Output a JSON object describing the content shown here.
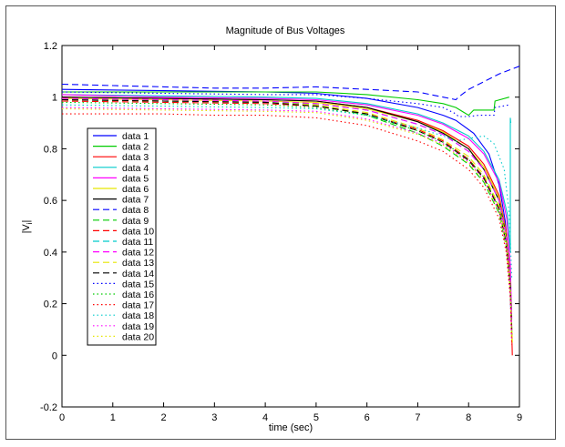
{
  "chart_data": {
    "type": "line",
    "title": "Magnitude of Bus Voltages",
    "xlabel": "time (sec)",
    "ylabel": "|V",
    "ylabel_subscript": "i",
    "ylabel_close": "|",
    "xlim": [
      0,
      9
    ],
    "ylim": [
      -0.2,
      1.2
    ],
    "xticks": [
      0,
      1,
      2,
      3,
      4,
      5,
      6,
      7,
      8,
      9
    ],
    "yticks": [
      -0.2,
      0,
      0.2,
      0.4,
      0.6,
      0.8,
      1,
      1.2
    ],
    "grid": false,
    "legend_position": "left",
    "series": [
      {
        "name": "data 1",
        "color": "#0000ff",
        "dash": "solid",
        "points": [
          [
            0,
            1.03
          ],
          [
            2,
            1.025
          ],
          [
            4,
            1.02
          ],
          [
            5,
            1.015
          ],
          [
            6,
            0.995
          ],
          [
            7,
            0.96
          ],
          [
            7.5,
            0.93
          ],
          [
            7.75,
            0.91
          ],
          [
            8.1,
            0.86
          ],
          [
            8.4,
            0.78
          ],
          [
            8.6,
            0.66
          ],
          [
            8.72,
            0.52
          ],
          [
            8.8,
            0.35
          ],
          [
            8.84,
            0.12
          ]
        ]
      },
      {
        "name": "data 2",
        "color": "#00cc00",
        "dash": "solid",
        "points": [
          [
            0,
            1.02
          ],
          [
            2,
            1.02
          ],
          [
            4,
            1.02
          ],
          [
            5,
            1.02
          ],
          [
            6,
            1.01
          ],
          [
            7,
            0.99
          ],
          [
            7.5,
            0.975
          ],
          [
            7.75,
            0.96
          ],
          [
            8.0,
            0.93
          ],
          [
            8.1,
            0.95
          ],
          [
            8.5,
            0.95
          ],
          [
            8.52,
            0.985
          ],
          [
            8.8,
            1.0
          ]
        ]
      },
      {
        "name": "data 3",
        "color": "#ff0000",
        "dash": "solid",
        "points": [
          [
            0,
            1.0
          ],
          [
            2,
            0.995
          ],
          [
            4,
            0.99
          ],
          [
            5,
            0.985
          ],
          [
            6,
            0.96
          ],
          [
            7,
            0.91
          ],
          [
            7.5,
            0.87
          ],
          [
            8,
            0.81
          ],
          [
            8.3,
            0.74
          ],
          [
            8.6,
            0.62
          ],
          [
            8.74,
            0.48
          ],
          [
            8.82,
            0.3
          ],
          [
            8.86,
            0.0
          ]
        ]
      },
      {
        "name": "data 4",
        "color": "#00cccc",
        "dash": "solid",
        "points": [
          [
            0,
            1.01
          ],
          [
            2,
            1.005
          ],
          [
            4,
            1.0
          ],
          [
            5,
            0.995
          ],
          [
            6,
            0.975
          ],
          [
            7,
            0.935
          ],
          [
            7.5,
            0.9
          ],
          [
            8,
            0.85
          ],
          [
            8.3,
            0.79
          ],
          [
            8.6,
            0.68
          ],
          [
            8.76,
            0.55
          ],
          [
            8.82,
            0.4
          ],
          [
            8.82,
            0.92
          ],
          [
            8.83,
            0.9
          ]
        ]
      },
      {
        "name": "data 5",
        "color": "#ff00ff",
        "dash": "solid",
        "points": [
          [
            0,
            1.01
          ],
          [
            2,
            1.0
          ],
          [
            4,
            0.995
          ],
          [
            5,
            0.99
          ],
          [
            6,
            0.97
          ],
          [
            7,
            0.93
          ],
          [
            7.5,
            0.895
          ],
          [
            8,
            0.84
          ],
          [
            8.3,
            0.78
          ],
          [
            8.6,
            0.67
          ],
          [
            8.75,
            0.53
          ],
          [
            8.82,
            0.35
          ],
          [
            8.85,
            0.14
          ]
        ]
      },
      {
        "name": "data 6",
        "color": "#e6e600",
        "dash": "solid",
        "points": [
          [
            0,
            0.995
          ],
          [
            2,
            0.99
          ],
          [
            4,
            0.985
          ],
          [
            5,
            0.98
          ],
          [
            6,
            0.955
          ],
          [
            7,
            0.905
          ],
          [
            7.5,
            0.865
          ],
          [
            8,
            0.8
          ],
          [
            8.3,
            0.73
          ],
          [
            8.6,
            0.61
          ],
          [
            8.74,
            0.47
          ],
          [
            8.82,
            0.28
          ],
          [
            8.86,
            0.05
          ]
        ]
      },
      {
        "name": "data 7",
        "color": "#000000",
        "dash": "solid",
        "points": [
          [
            0,
            1.0
          ],
          [
            2,
            0.995
          ],
          [
            4,
            0.99
          ],
          [
            5,
            0.985
          ],
          [
            6,
            0.96
          ],
          [
            7,
            0.905
          ],
          [
            7.5,
            0.86
          ],
          [
            8,
            0.8
          ],
          [
            8.3,
            0.72
          ],
          [
            8.6,
            0.6
          ],
          [
            8.74,
            0.46
          ],
          [
            8.82,
            0.28
          ],
          [
            8.85,
            0.1
          ]
        ]
      },
      {
        "name": "data 8",
        "color": "#0000ff",
        "dash": "dashed",
        "points": [
          [
            0,
            1.05
          ],
          [
            1,
            1.045
          ],
          [
            2,
            1.04
          ],
          [
            3,
            1.035
          ],
          [
            4,
            1.035
          ],
          [
            5,
            1.04
          ],
          [
            5.5,
            1.035
          ],
          [
            6,
            1.03
          ],
          [
            7,
            1.02
          ],
          [
            7.5,
            1.0
          ],
          [
            7.75,
            0.99
          ],
          [
            7.8,
            1.0
          ],
          [
            8.0,
            1.03
          ],
          [
            8.3,
            1.06
          ],
          [
            8.6,
            1.09
          ],
          [
            9,
            1.12
          ]
        ]
      },
      {
        "name": "data 9",
        "color": "#00cc00",
        "dash": "dashed",
        "points": [
          [
            0,
            0.99
          ],
          [
            2,
            0.985
          ],
          [
            4,
            0.98
          ],
          [
            5,
            0.97
          ],
          [
            6,
            0.93
          ],
          [
            7,
            0.86
          ],
          [
            7.5,
            0.81
          ],
          [
            8,
            0.74
          ],
          [
            8.3,
            0.67
          ],
          [
            8.6,
            0.55
          ],
          [
            8.74,
            0.42
          ],
          [
            8.82,
            0.25
          ],
          [
            8.85,
            0.08
          ]
        ]
      },
      {
        "name": "data 10",
        "color": "#ff0000",
        "dash": "dashed",
        "points": [
          [
            0,
            0.985
          ],
          [
            2,
            0.98
          ],
          [
            4,
            0.975
          ],
          [
            5,
            0.965
          ],
          [
            6,
            0.935
          ],
          [
            7,
            0.875
          ],
          [
            7.5,
            0.83
          ],
          [
            8,
            0.76
          ],
          [
            8.3,
            0.69
          ],
          [
            8.6,
            0.57
          ],
          [
            8.74,
            0.44
          ],
          [
            8.82,
            0.26
          ],
          [
            8.85,
            0.06
          ]
        ]
      },
      {
        "name": "data 11",
        "color": "#00cccc",
        "dash": "dashed",
        "points": [
          [
            0,
            0.99
          ],
          [
            2,
            0.985
          ],
          [
            4,
            0.98
          ],
          [
            5,
            0.975
          ],
          [
            6,
            0.95
          ],
          [
            7,
            0.895
          ],
          [
            7.5,
            0.855
          ],
          [
            8,
            0.79
          ],
          [
            8.3,
            0.72
          ],
          [
            8.6,
            0.6
          ],
          [
            8.74,
            0.46
          ],
          [
            8.82,
            0.28
          ],
          [
            8.85,
            0.09
          ]
        ]
      },
      {
        "name": "data 12",
        "color": "#ff00ff",
        "dash": "dashed",
        "points": [
          [
            0,
            0.995
          ],
          [
            2,
            0.99
          ],
          [
            4,
            0.985
          ],
          [
            5,
            0.975
          ],
          [
            6,
            0.95
          ],
          [
            7,
            0.895
          ],
          [
            7.5,
            0.855
          ],
          [
            8,
            0.79
          ],
          [
            8.3,
            0.72
          ],
          [
            8.6,
            0.6
          ],
          [
            8.74,
            0.46
          ],
          [
            8.82,
            0.28
          ],
          [
            8.85,
            0.1
          ]
        ]
      },
      {
        "name": "data 13",
        "color": "#e6e600",
        "dash": "dashed",
        "points": [
          [
            0,
            0.99
          ],
          [
            2,
            0.985
          ],
          [
            4,
            0.98
          ],
          [
            5,
            0.97
          ],
          [
            6,
            0.94
          ],
          [
            7,
            0.88
          ],
          [
            7.5,
            0.835
          ],
          [
            8,
            0.77
          ],
          [
            8.3,
            0.7
          ],
          [
            8.6,
            0.58
          ],
          [
            8.74,
            0.45
          ],
          [
            8.82,
            0.27
          ],
          [
            8.85,
            0.07
          ]
        ]
      },
      {
        "name": "data 14",
        "color": "#000000",
        "dash": "dashed",
        "points": [
          [
            0,
            0.99
          ],
          [
            2,
            0.985
          ],
          [
            4,
            0.98
          ],
          [
            5,
            0.965
          ],
          [
            6,
            0.935
          ],
          [
            7,
            0.87
          ],
          [
            7.5,
            0.825
          ],
          [
            8,
            0.755
          ],
          [
            8.3,
            0.685
          ],
          [
            8.6,
            0.565
          ],
          [
            8.74,
            0.43
          ],
          [
            8.82,
            0.26
          ],
          [
            8.85,
            0.08
          ]
        ]
      },
      {
        "name": "data 15",
        "color": "#0000ff",
        "dash": "dotted",
        "points": [
          [
            0,
            1.02
          ],
          [
            2,
            1.015
          ],
          [
            4,
            1.01
          ],
          [
            5,
            1.01
          ],
          [
            6,
            0.995
          ],
          [
            7,
            0.975
          ],
          [
            7.5,
            0.96
          ],
          [
            7.75,
            0.935
          ],
          [
            7.8,
            0.925
          ],
          [
            8.0,
            0.925
          ],
          [
            8.2,
            0.93
          ],
          [
            8.5,
            0.93
          ],
          [
            8.52,
            0.96
          ],
          [
            8.8,
            0.97
          ]
        ]
      },
      {
        "name": "data 16",
        "color": "#00cc00",
        "dash": "dotted",
        "points": [
          [
            0,
            0.98
          ],
          [
            2,
            0.975
          ],
          [
            4,
            0.97
          ],
          [
            5,
            0.96
          ],
          [
            6,
            0.93
          ],
          [
            7,
            0.87
          ],
          [
            7.5,
            0.825
          ],
          [
            8,
            0.76
          ],
          [
            8.3,
            0.69
          ],
          [
            8.6,
            0.57
          ],
          [
            8.74,
            0.44
          ],
          [
            8.82,
            0.26
          ],
          [
            8.85,
            0.07
          ]
        ]
      },
      {
        "name": "data 17",
        "color": "#ff0000",
        "dash": "dotted",
        "points": [
          [
            0,
            0.935
          ],
          [
            1,
            0.935
          ],
          [
            2,
            0.935
          ],
          [
            3,
            0.93
          ],
          [
            4,
            0.93
          ],
          [
            5,
            0.92
          ],
          [
            6,
            0.89
          ],
          [
            7,
            0.83
          ],
          [
            7.5,
            0.79
          ],
          [
            8,
            0.72
          ],
          [
            8.3,
            0.65
          ],
          [
            8.6,
            0.53
          ],
          [
            8.74,
            0.4
          ],
          [
            8.82,
            0.22
          ],
          [
            8.85,
            0.04
          ]
        ]
      },
      {
        "name": "data 18",
        "color": "#00cccc",
        "dash": "dotted",
        "points": [
          [
            0,
            0.97
          ],
          [
            2,
            0.965
          ],
          [
            4,
            0.96
          ],
          [
            5,
            0.955
          ],
          [
            6,
            0.93
          ],
          [
            7,
            0.88
          ],
          [
            7.5,
            0.85
          ],
          [
            7.75,
            0.83
          ],
          [
            8.0,
            0.84
          ],
          [
            8.3,
            0.85
          ],
          [
            8.5,
            0.82
          ],
          [
            8.7,
            0.72
          ],
          [
            8.8,
            0.55
          ],
          [
            8.85,
            0.3
          ]
        ]
      },
      {
        "name": "data 19",
        "color": "#ff00ff",
        "dash": "dotted",
        "points": [
          [
            0,
            0.96
          ],
          [
            2,
            0.955
          ],
          [
            4,
            0.95
          ],
          [
            5,
            0.945
          ],
          [
            6,
            0.915
          ],
          [
            7,
            0.86
          ],
          [
            7.5,
            0.82
          ],
          [
            8,
            0.75
          ],
          [
            8.3,
            0.68
          ],
          [
            8.6,
            0.56
          ],
          [
            8.74,
            0.43
          ],
          [
            8.82,
            0.25
          ],
          [
            8.85,
            0.06
          ]
        ]
      },
      {
        "name": "data 20",
        "color": "#e6e600",
        "dash": "dotted",
        "points": [
          [
            0,
            0.955
          ],
          [
            2,
            0.95
          ],
          [
            4,
            0.945
          ],
          [
            5,
            0.94
          ],
          [
            6,
            0.91
          ],
          [
            7,
            0.855
          ],
          [
            7.5,
            0.815
          ],
          [
            8,
            0.745
          ],
          [
            8.3,
            0.675
          ],
          [
            8.6,
            0.555
          ],
          [
            8.74,
            0.42
          ],
          [
            8.82,
            0.24
          ],
          [
            8.85,
            0.05
          ]
        ]
      }
    ]
  }
}
